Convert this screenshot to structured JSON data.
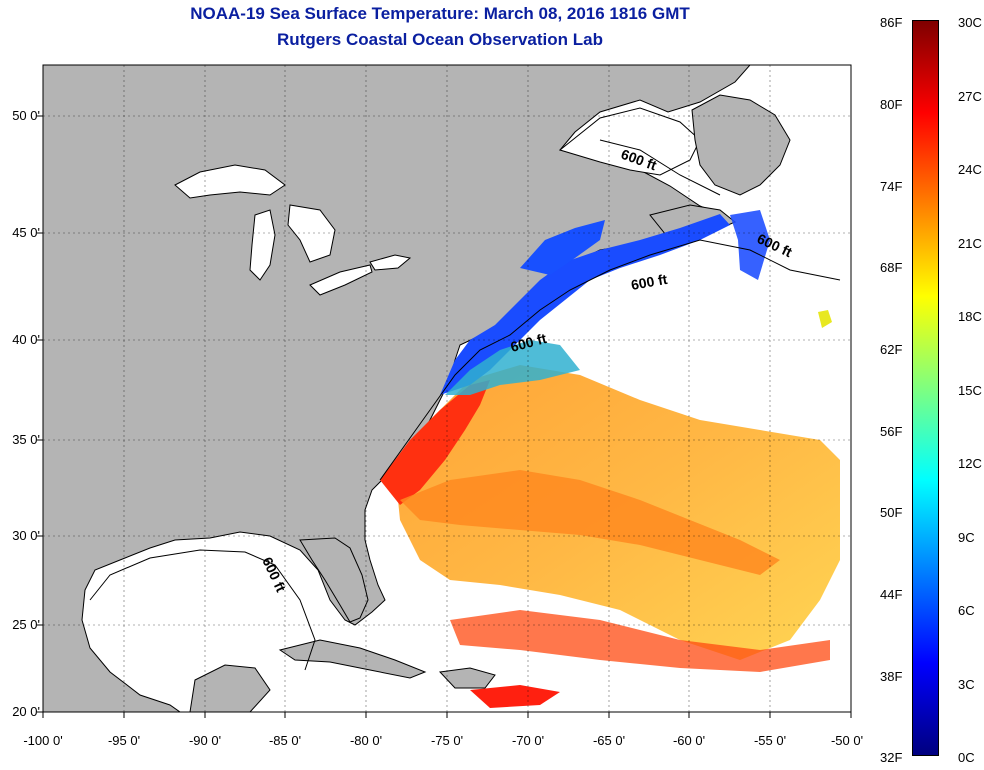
{
  "title": "NOAA-19 Sea Surface Temperature:  March 08, 2016 1816 GMT",
  "subtitle": "Rutgers Coastal Ocean Observation Lab",
  "axes": {
    "y_labels": [
      "50 0'",
      "45 0'",
      "40 0'",
      "35 0'",
      "30 0'",
      "25 0'",
      "20 0'"
    ],
    "x_labels": [
      "-100 0'",
      "-95 0'",
      "-90 0'",
      "-85 0'",
      "-80 0'",
      "-75 0'",
      "-70 0'",
      "-65 0'",
      "-60 0'",
      "-55 0'",
      "-50 0'"
    ],
    "lon_range": [
      -100,
      -50
    ],
    "lat_range": [
      20,
      52.5
    ],
    "grid": "dotted"
  },
  "map": {
    "land_color": "#b4b4b4",
    "water_color": "#ffffff",
    "coastline_color": "#000000",
    "isobath_label": "600 ft"
  },
  "colorbar": {
    "fahrenheit": [
      "86F",
      "80F",
      "74F",
      "68F",
      "62F",
      "56F",
      "50F",
      "44F",
      "38F",
      "32F"
    ],
    "celsius": [
      "30C",
      "27C",
      "24C",
      "21C",
      "18C",
      "15C",
      "12C",
      "9C",
      "6C",
      "3C",
      "0C"
    ],
    "range_c": [
      0,
      30
    ],
    "colors": [
      "#00007f",
      "#0000ff",
      "#007fff",
      "#00ffff",
      "#7fff7f",
      "#ffff00",
      "#ff7f00",
      "#ff0000",
      "#7f0000"
    ]
  }
}
